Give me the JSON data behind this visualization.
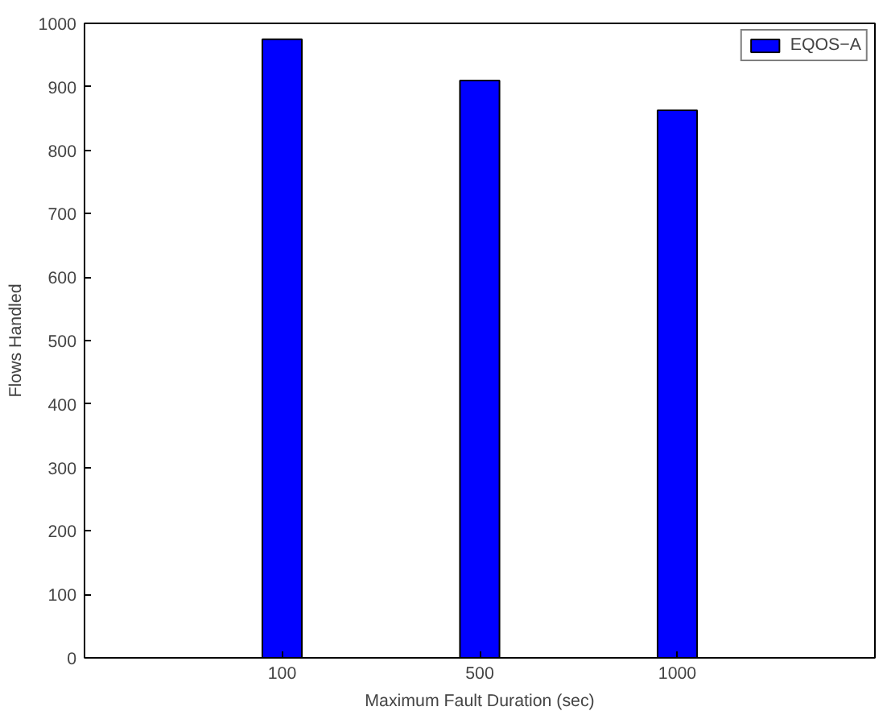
{
  "chart_data": {
    "type": "bar",
    "xlabel": "Maximum Fault Duration (sec)",
    "ylabel": "Flows Handled",
    "categories": [
      "100",
      "500",
      "1000"
    ],
    "series": [
      {
        "name": "EQOS−A",
        "color": "#0000ff",
        "values": [
          975,
          910,
          863
        ]
      }
    ],
    "ylim": [
      0,
      1000
    ],
    "yticks": [
      0,
      100,
      200,
      300,
      400,
      500,
      600,
      700,
      800,
      900,
      1000
    ],
    "grid": false,
    "legend": "top right"
  }
}
